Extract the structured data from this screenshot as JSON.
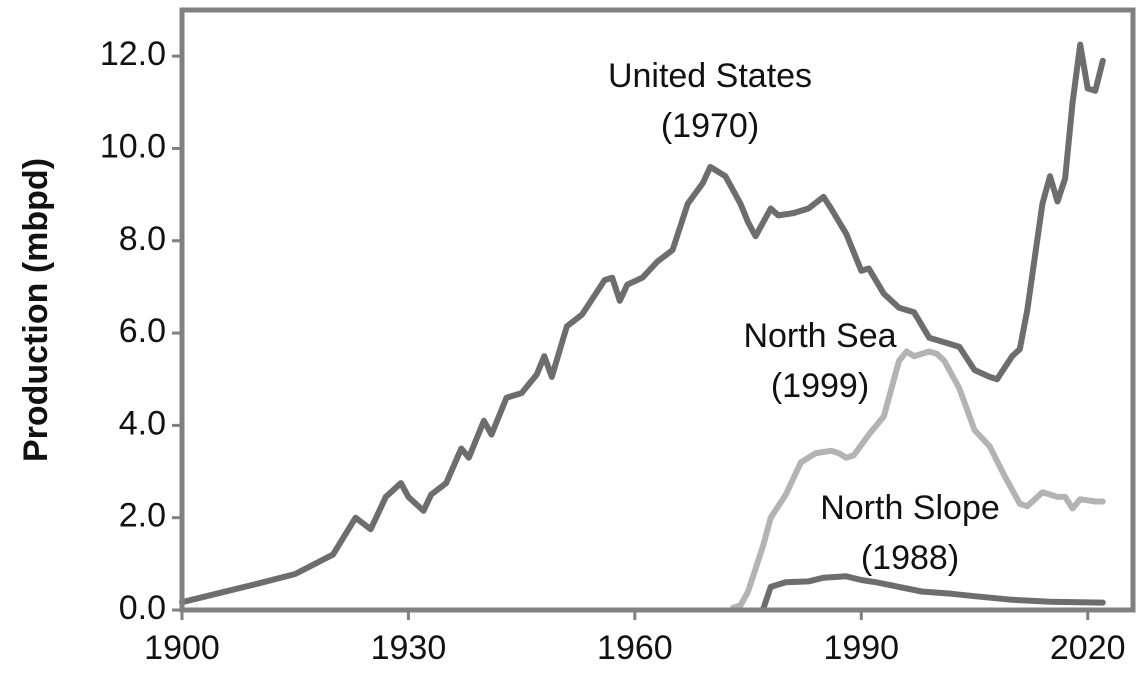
{
  "chart_data": {
    "type": "line",
    "y_label": "Production (mbpd)",
    "xlim": [
      1900,
      2026
    ],
    "ylim": [
      0,
      13
    ],
    "xticks": [
      1900,
      1930,
      1960,
      1990,
      2020
    ],
    "yticks": [
      {
        "value": 0,
        "label": "0.0"
      },
      {
        "value": 2,
        "label": "2.0"
      },
      {
        "value": 4,
        "label": "4.0"
      },
      {
        "value": 6,
        "label": "6.0"
      },
      {
        "value": 8,
        "label": "8.0"
      },
      {
        "value": 10,
        "label": "10.0"
      },
      {
        "value": 12,
        "label": "12.0"
      }
    ],
    "series": [
      {
        "name": "United States",
        "peak_label": "(1970)",
        "color": "#6d6d6d",
        "x": [
          1900,
          1905,
          1910,
          1915,
          1920,
          1923,
          1925,
          1927,
          1929,
          1930,
          1932,
          1933,
          1935,
          1937,
          1938,
          1940,
          1941,
          1943,
          1945,
          1947,
          1948,
          1949,
          1951,
          1953,
          1956,
          1957,
          1958,
          1959,
          1961,
          1963,
          1965,
          1967,
          1969,
          1970,
          1972,
          1974,
          1975,
          1976,
          1978,
          1979,
          1981,
          1983,
          1985,
          1986,
          1988,
          1990,
          1991,
          1993,
          1995,
          1997,
          1999,
          2001,
          2003,
          2005,
          2007,
          2008,
          2010,
          2011,
          2012,
          2014,
          2015,
          2016,
          2017,
          2018,
          2019,
          2020,
          2021,
          2022
        ],
        "values": [
          0.17,
          0.37,
          0.57,
          0.78,
          1.2,
          2.0,
          1.75,
          2.45,
          2.75,
          2.45,
          2.15,
          2.5,
          2.75,
          3.5,
          3.3,
          4.1,
          3.8,
          4.6,
          4.7,
          5.1,
          5.5,
          5.05,
          6.15,
          6.4,
          7.15,
          7.2,
          6.7,
          7.05,
          7.2,
          7.55,
          7.8,
          8.8,
          9.25,
          9.6,
          9.4,
          8.8,
          8.4,
          8.1,
          8.7,
          8.55,
          8.6,
          8.7,
          8.95,
          8.7,
          8.15,
          7.35,
          7.4,
          6.85,
          6.55,
          6.45,
          5.9,
          5.8,
          5.7,
          5.2,
          5.05,
          5.0,
          5.5,
          5.65,
          6.5,
          8.8,
          9.4,
          8.85,
          9.35,
          11.0,
          12.25,
          11.3,
          11.25,
          11.9
        ]
      },
      {
        "name": "North Sea",
        "peak_label": "(1999)",
        "color": "#b3b3b3",
        "x": [
          1973,
          1974,
          1975,
          1977,
          1978,
          1980,
          1982,
          1984,
          1986,
          1987,
          1988,
          1989,
          1991,
          1993,
          1995,
          1996,
          1997,
          1999,
          2000,
          2001,
          2003,
          2005,
          2007,
          2009,
          2011,
          2012,
          2014,
          2016,
          2017,
          2018,
          2019,
          2021,
          2022
        ],
        "values": [
          0.05,
          0.1,
          0.4,
          1.4,
          2.0,
          2.5,
          3.2,
          3.4,
          3.45,
          3.4,
          3.3,
          3.35,
          3.8,
          4.2,
          5.4,
          5.6,
          5.5,
          5.6,
          5.55,
          5.4,
          4.8,
          3.9,
          3.55,
          2.9,
          2.3,
          2.25,
          2.55,
          2.45,
          2.45,
          2.2,
          2.4,
          2.35,
          2.35
        ]
      },
      {
        "name": "North Slope",
        "peak_label": "(1988)",
        "color": "#6d6d6d",
        "x": [
          1977,
          1978,
          1980,
          1983,
          1985,
          1988,
          1990,
          1992,
          1995,
          1998,
          2002,
          2005,
          2010,
          2015,
          2022
        ],
        "values": [
          0.02,
          0.5,
          0.6,
          0.62,
          0.7,
          0.73,
          0.65,
          0.6,
          0.5,
          0.4,
          0.35,
          0.3,
          0.22,
          0.18,
          0.16
        ]
      }
    ]
  }
}
